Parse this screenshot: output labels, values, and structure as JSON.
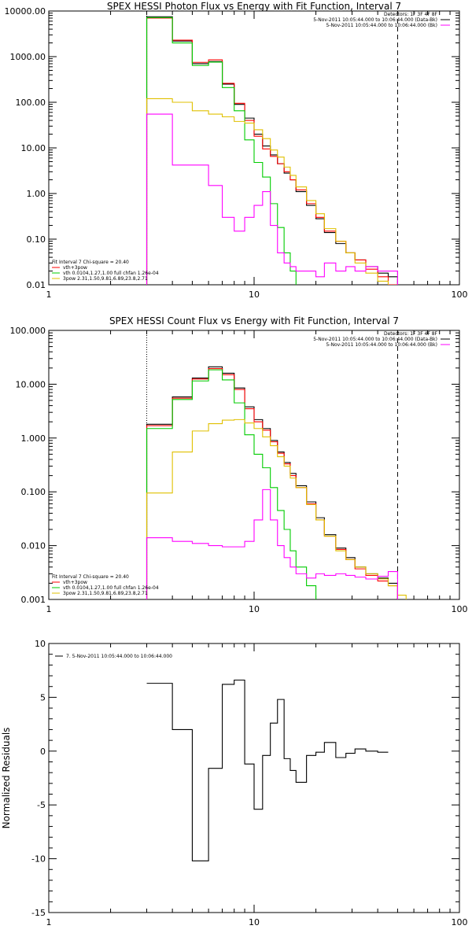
{
  "chart_data": [
    {
      "type": "line",
      "title": "SPEX HESSI Photon Flux vs Energy with Fit Function, Interval 7",
      "x_scale": "log",
      "y_scale": "log",
      "xlim": [
        1,
        100
      ],
      "ylim": [
        0.01,
        10000
      ],
      "x_ticks": [
        "1",
        "10",
        "100"
      ],
      "y_ticks": [
        "10000.00",
        "1000.00",
        "100.00",
        "10.00",
        "1.00",
        "0.10",
        "0.01"
      ],
      "top_legend": [
        {
          "text": "Detectors: 1F 3F 4F 8F",
          "color": "#000000"
        },
        {
          "text": "5-Nov-2011 10:05:44.000 to 10:06:44.000 (Data-Bk)",
          "color": "#000000"
        },
        {
          "text": "5-Nov-2011 10:05:44.000 to 10:06:44.000 (Bk)",
          "color": "#ff00ff"
        }
      ],
      "fit_legend": [
        {
          "text": "Fit Interval  7    Chi-square = 20.40",
          "color": "#000000"
        },
        {
          "text": "vth+3pow",
          "color": "#ff0000"
        },
        {
          "text": "vth 0.0104,1.27,1.00  full chfan 1.26e-04",
          "color": "#00cc00"
        },
        {
          "text": "3pow 2.31,1.50,9.81,6.89,23.8,2.71",
          "color": "#e0c000"
        }
      ],
      "vlines": [
        {
          "x": 3,
          "style": "dotted"
        },
        {
          "x": 50,
          "style": "dashed"
        }
      ],
      "edges": [
        3,
        4,
        5,
        6,
        7,
        8,
        9,
        10,
        11,
        12,
        13,
        14,
        15,
        16,
        18,
        20,
        22,
        25,
        28,
        31,
        35,
        40,
        45,
        50
      ],
      "series": [
        {
          "color": "#000000",
          "values": [
            7500,
            2200,
            700,
            780,
            250,
            90,
            45,
            20,
            11,
            7,
            4.5,
            2.8,
            2,
            1.1,
            0.55,
            0.28,
            0.14,
            0.08,
            0.05,
            0.035,
            0.025,
            0.018,
            0.015
          ]
        },
        {
          "color": "#ff0000",
          "values": [
            7000,
            2300,
            750,
            850,
            260,
            95,
            40,
            18,
            9.5,
            6.5,
            4.5,
            3,
            2,
            1.2,
            0.6,
            0.3,
            0.15,
            0.09,
            0.05,
            0.035,
            0.022,
            0.015,
            0.01
          ]
        },
        {
          "color": "#00cc00",
          "values": [
            7200,
            2000,
            640,
            760,
            210,
            65,
            15,
            4.8,
            2.3,
            0.6,
            0.18,
            0.05,
            0.02,
            0.006
          ]
        },
        {
          "color": "#e0c000",
          "values": [
            120,
            100,
            65,
            55,
            48,
            38,
            35,
            25,
            16,
            9,
            6.3,
            3.8,
            2.5,
            1.4,
            0.7,
            0.36,
            0.17,
            0.09,
            0.05,
            0.03,
            0.018,
            0.012,
            0.008
          ]
        },
        {
          "color": "#ff00ff",
          "values": [
            55,
            4.2,
            4.2,
            1.5,
            0.3,
            0.15,
            0.3,
            0.55,
            1.1,
            0.2,
            0.05,
            0.03,
            0.025,
            0.02,
            0.02,
            0.015,
            0.03,
            0.02,
            0.025,
            0.02,
            0.025,
            0.02,
            0.02
          ]
        }
      ]
    },
    {
      "type": "line",
      "title": "SPEX HESSI Count Flux vs Energy with Fit Function, Interval 7",
      "x_scale": "log",
      "y_scale": "log",
      "xlim": [
        1,
        100
      ],
      "ylim": [
        0.001,
        100
      ],
      "x_ticks": [
        "1",
        "10",
        "100"
      ],
      "y_ticks": [
        "100.000",
        "10.000",
        "1.000",
        "0.100",
        "0.010",
        "0.001"
      ],
      "top_legend": [
        {
          "text": "Detectors: 1F 3F 4F 8F",
          "color": "#000000"
        },
        {
          "text": "5-Nov-2011 10:05:44.000 to 10:06:44.000 (Data-Bk)",
          "color": "#000000"
        },
        {
          "text": "5-Nov-2011 10:05:44.000 to 10:06:44.000 (Bk)",
          "color": "#ff00ff"
        }
      ],
      "fit_legend": [
        {
          "text": "Fit Interval  7    Chi-square = 20.40",
          "color": "#000000"
        },
        {
          "text": "vth+3pow",
          "color": "#ff0000"
        },
        {
          "text": "vth 0.0104,1.27,1.00  full chfan 1.26e-04",
          "color": "#00cc00"
        },
        {
          "text": "3pow 2.31,1.50,9.81,6.89,23.8,2.71",
          "color": "#e0c000"
        }
      ],
      "vlines": [
        {
          "x": 3,
          "style": "dotted"
        },
        {
          "x": 50,
          "style": "dashed"
        }
      ],
      "edges": [
        3,
        4,
        5,
        6,
        7,
        8,
        9,
        10,
        11,
        12,
        13,
        14,
        15,
        16,
        18,
        20,
        22,
        25,
        28,
        31,
        35,
        40,
        45,
        50,
        55,
        60
      ],
      "series": [
        {
          "color": "#000000",
          "values": [
            1.8,
            5.8,
            13,
            21,
            16,
            8.5,
            3.8,
            2.2,
            1.5,
            0.9,
            0.55,
            0.35,
            0.22,
            0.13,
            0.065,
            0.033,
            0.016,
            0.009,
            0.006,
            0.004,
            0.003,
            0.0025,
            0.002
          ]
        },
        {
          "color": "#ff0000",
          "values": [
            1.7,
            5.5,
            12.5,
            19.5,
            15,
            8,
            3.5,
            2,
            1.4,
            0.85,
            0.52,
            0.33,
            0.2,
            0.12,
            0.06,
            0.03,
            0.015,
            0.0085,
            0.0055,
            0.0037,
            0.0028,
            0.0022,
            0.0018
          ]
        },
        {
          "color": "#00cc00",
          "values": [
            1.5,
            5.2,
            11.5,
            18.5,
            12,
            4.5,
            1.15,
            0.5,
            0.28,
            0.12,
            0.045,
            0.02,
            0.008,
            0.004,
            0.0018,
            0.0008
          ]
        },
        {
          "color": "#e0c000",
          "values": [
            0.095,
            0.55,
            1.35,
            1.85,
            2.15,
            2.2,
            1.9,
            1.5,
            1.05,
            0.72,
            0.45,
            0.3,
            0.18,
            0.12,
            0.058,
            0.03,
            0.015,
            0.008,
            0.0055,
            0.004,
            0.003,
            0.0024,
            0.0018,
            0.0012,
            0.0008
          ]
        },
        {
          "color": "#ff00ff",
          "values": [
            0.014,
            0.012,
            0.011,
            0.01,
            0.0095,
            0.0095,
            0.012,
            0.03,
            0.11,
            0.03,
            0.01,
            0.006,
            0.004,
            0.003,
            0.0025,
            0.003,
            0.0028,
            0.003,
            0.0028,
            0.0026,
            0.0024,
            0.0027,
            0.0033
          ]
        }
      ]
    },
    {
      "type": "line",
      "title": "",
      "ylabel": "Normalized Residuals",
      "x_scale": "log",
      "y_scale": "linear",
      "xlim": [
        1,
        100
      ],
      "ylim": [
        -15,
        10
      ],
      "x_ticks": [
        "1",
        "10",
        "100"
      ],
      "y_ticks": [
        "10",
        "5",
        "0",
        "-5",
        "-10",
        "-15"
      ],
      "legend": [
        {
          "text": "7. 5-Nov-2011 10:05:44.000 to 10:06:44.000",
          "color": "#000000"
        }
      ],
      "edges": [
        3,
        4,
        5,
        6,
        7,
        8,
        9,
        10,
        11,
        12,
        13,
        14,
        15,
        16,
        18,
        20,
        22,
        25,
        28,
        31,
        35,
        40,
        45,
        50
      ],
      "series": [
        {
          "color": "#000000",
          "values": [
            6.3,
            2.0,
            -10.2,
            -1.6,
            6.2,
            6.6,
            -1.2,
            -5.4,
            -0.4,
            2.6,
            4.8,
            -0.7,
            -1.8,
            -2.9,
            -0.4,
            -0.1,
            0.8,
            -0.6,
            -0.2,
            0.2,
            0.0,
            -0.1
          ]
        }
      ]
    }
  ]
}
